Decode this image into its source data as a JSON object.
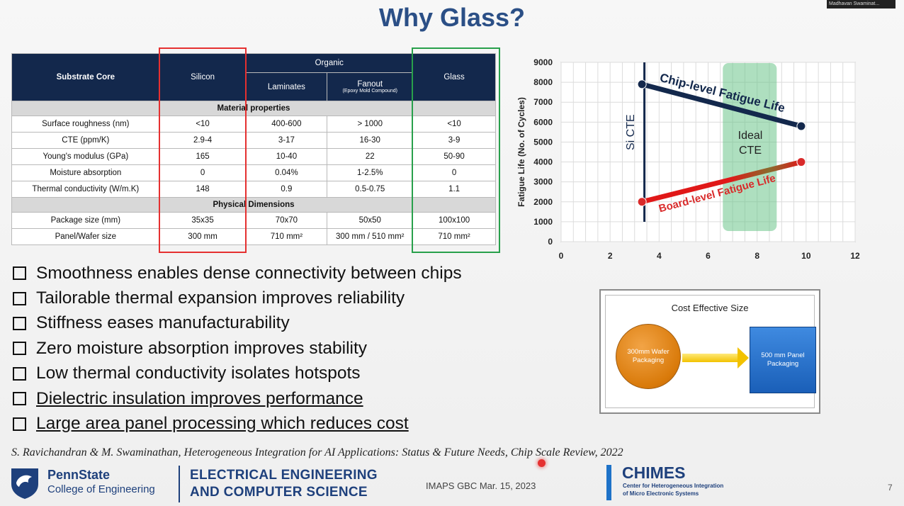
{
  "slide": {
    "title": "Why Glass?",
    "presenter_label": "Madhavan Swaminat...",
    "citation": "S. Ravichandran & M. Swaminathan, Heterogeneous Integration for AI Applications: Status & Future Needs, Chip Scale Review, 2022",
    "page_number": "7"
  },
  "table": {
    "header": {
      "core": "Substrate Core",
      "silicon": "Silicon",
      "organic": "Organic",
      "laminates": "Laminates",
      "fanout": "Fanout",
      "fanout_sub": "(Epoxy Mold Compound)",
      "glass": "Glass"
    },
    "section_material": "Material properties",
    "section_physical": "Physical Dimensions",
    "material_rows": [
      {
        "label": "Surface roughness (nm)",
        "silicon": "<10",
        "laminates": "400-600",
        "fanout": "> 1000",
        "glass": "<10"
      },
      {
        "label": "CTE (ppm/K)",
        "silicon": "2.9-4",
        "laminates": "3-17",
        "fanout": "16-30",
        "glass": "3-9"
      },
      {
        "label": "Young's modulus (GPa)",
        "silicon": "165",
        "laminates": "10-40",
        "fanout": "22",
        "glass": "50-90"
      },
      {
        "label": "Moisture absorption",
        "silicon": "0",
        "laminates": "0.04%",
        "fanout": "1-2.5%",
        "glass": "0"
      },
      {
        "label": "Thermal conductivity (W/m.K)",
        "silicon": "148",
        "laminates": "0.9",
        "fanout": "0.5-0.75",
        "glass": "1.1"
      }
    ],
    "physical_rows": [
      {
        "label": "Package size (mm)",
        "silicon": "35x35",
        "laminates": "70x70",
        "fanout": "50x50",
        "glass": "100x100"
      },
      {
        "label": "Panel/Wafer size",
        "silicon": "300 mm",
        "laminates": "710 mm²",
        "fanout": "300 mm / 510 mm²",
        "glass": "710 mm²"
      }
    ]
  },
  "bullets": [
    "Smoothness enables dense connectivity between chips",
    "Tailorable thermal expansion improves reliability",
    "Stiffness eases manufacturability",
    "Zero moisture absorption improves stability",
    "Low thermal conductivity isolates hotspots",
    "Dielectric insulation improves performance",
    "Large area panel processing which reduces cost"
  ],
  "cost_box": {
    "title": "Cost Effective Size",
    "wafer": "300mm Wafer Packaging",
    "panel": "500 mm Panel Packaging"
  },
  "chart_data": {
    "type": "line",
    "title": "",
    "xlabel": "",
    "ylabel": "Fatigue Life (No. of Cycles)",
    "xlim": [
      0,
      12
    ],
    "ylim": [
      0,
      9000
    ],
    "xticks": [
      0,
      2,
      4,
      6,
      8,
      10,
      12
    ],
    "yticks": [
      0,
      1000,
      2000,
      3000,
      4000,
      5000,
      6000,
      7000,
      8000,
      9000
    ],
    "grid": true,
    "series": [
      {
        "name": "Chip-level Fatigue Life",
        "color": "#13284c",
        "x": [
          3.3,
          9.8
        ],
        "y": [
          7900,
          5800
        ]
      },
      {
        "name": "Board-level Fatigue Life",
        "color": "#d92a2a",
        "x": [
          3.3,
          9.8
        ],
        "y": [
          2000,
          4000
        ]
      }
    ],
    "annotations": {
      "si_cte_label": "Si CTE",
      "si_cte_x": 3.4,
      "ideal_label_line1": "Ideal",
      "ideal_label_line2": "CTE",
      "ideal_range_x": [
        6.6,
        8.8
      ]
    }
  },
  "footer": {
    "psu_name": "PennState",
    "psu_college": "College of Engineering",
    "eecs_line1": "ELECTRICAL ENGINEERING",
    "eecs_line2": "AND COMPUTER SCIENCE",
    "event": "IMAPS GBC Mar. 15, 2023",
    "chimes": "CHIMES",
    "chimes_sub1": "Center for Heterogeneous Integration",
    "chimes_sub2": "of Micro Electronic Systems"
  },
  "colors": {
    "title_blue": "#2b4f86",
    "table_header": "#13284c",
    "silicon_frame": "#e53030",
    "glass_frame": "#28a04b"
  }
}
